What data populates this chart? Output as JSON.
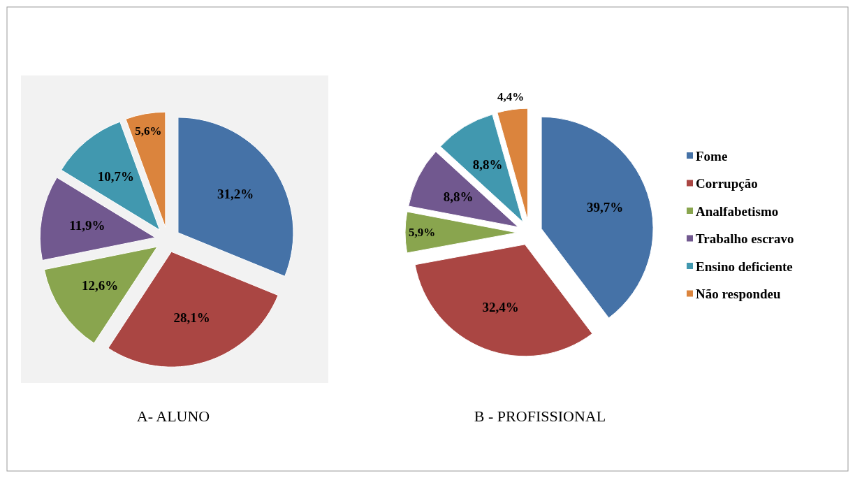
{
  "chart_data": [
    {
      "type": "pie",
      "title": "A- ALUNO",
      "categories": [
        null,
        null,
        null,
        null,
        null,
        null
      ],
      "values": [
        31.2,
        28.1,
        12.6,
        11.9,
        10.7,
        5.6
      ],
      "value_labels": [
        "31,2%",
        "28,1%",
        "12,6%",
        "11,9%",
        "10,7%",
        "5,6%"
      ],
      "colors": [
        "#4572a7",
        "#aa4643",
        "#89a54e",
        "#71588f",
        "#4198af",
        "#db843d"
      ],
      "legend": false
    },
    {
      "type": "pie",
      "title": "B - PROFISSIONAL",
      "categories": [
        "Fome",
        "Corrupção",
        "Analfabetismo",
        "Trabalho escravo",
        "Ensino deficiente",
        "Não respondeu"
      ],
      "values": [
        39.7,
        32.4,
        5.9,
        8.8,
        8.8,
        4.4
      ],
      "value_labels": [
        "39,7%",
        "32,4%",
        "5,9%",
        "8,8%",
        "8,8%",
        "4,4%"
      ],
      "colors": [
        "#4572a7",
        "#aa4643",
        "#89a54e",
        "#71588f",
        "#4198af",
        "#db843d"
      ],
      "legend": "right"
    }
  ]
}
